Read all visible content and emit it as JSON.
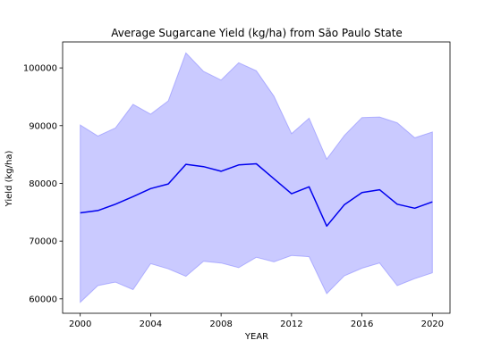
{
  "chart_data": {
    "type": "line",
    "title": "Average Sugarcane Yield (kg/ha) from São Paulo State",
    "xlabel": "YEAR",
    "ylabel": "Yield (kg/ha)",
    "xlim": [
      1999,
      2021
    ],
    "ylim": [
      57500,
      104500
    ],
    "xticks": [
      2000,
      2004,
      2008,
      2012,
      2016,
      2020
    ],
    "yticks": [
      60000,
      70000,
      80000,
      90000,
      100000
    ],
    "grid": false,
    "legend": "none",
    "x": [
      2000,
      2001,
      2002,
      2003,
      2004,
      2005,
      2006,
      2007,
      2008,
      2009,
      2010,
      2011,
      2012,
      2013,
      2014,
      2015,
      2016,
      2017,
      2018,
      2019,
      2020
    ],
    "series": [
      {
        "name": "",
        "color": "#0000ee",
        "values": [
          74900,
          75300,
          76400,
          77700,
          79100,
          79900,
          83300,
          82900,
          82100,
          83200,
          83400,
          80800,
          78200,
          79400,
          72600,
          76300,
          78400,
          78900,
          76400,
          75700,
          76800
        ]
      }
    ],
    "band": {
      "color": "#7b7bff",
      "upper": [
        90100,
        88200,
        89600,
        93700,
        92000,
        94300,
        102600,
        99400,
        97900,
        100900,
        99500,
        95100,
        88600,
        91300,
        84200,
        88300,
        91400,
        91500,
        90500,
        87900,
        88900
      ],
      "lower": [
        59400,
        62300,
        62900,
        61600,
        66100,
        65200,
        63900,
        66500,
        66200,
        65400,
        67200,
        66400,
        67500,
        67300,
        60900,
        64000,
        65300,
        66200,
        62300,
        63500,
        64500
      ]
    }
  }
}
